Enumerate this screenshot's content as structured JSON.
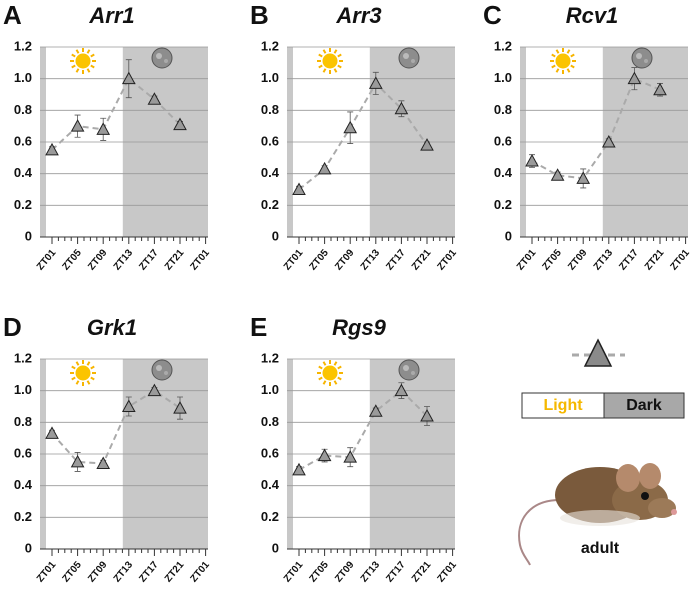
{
  "chart_data": [
    {
      "type": "line",
      "label": "A",
      "title": "Arr1",
      "categories": [
        "ZT01",
        "ZT05",
        "ZT09",
        "ZT13",
        "ZT17",
        "ZT21",
        "ZT01"
      ],
      "values": [
        0.55,
        0.7,
        0.68,
        1.0,
        0.87,
        0.71,
        null
      ],
      "errors": [
        0.02,
        0.07,
        0.07,
        0.12,
        0.02,
        0.02,
        null
      ],
      "ylim": [
        0,
        1.2
      ],
      "yticks": [
        0,
        0.2,
        0.4,
        0.6,
        0.8,
        {
          "value": 1,
          "label": "1.0"
        },
        1.2
      ],
      "grid": true,
      "color": "#9a9a9a"
    },
    {
      "type": "line",
      "label": "B",
      "title": "Arr3",
      "categories": [
        "ZT01",
        "ZT05",
        "ZT09",
        "ZT13",
        "ZT17",
        "ZT21",
        "ZT01"
      ],
      "values": [
        0.3,
        0.43,
        0.69,
        0.97,
        0.81,
        0.58,
        null
      ],
      "errors": [
        0.02,
        0.02,
        0.1,
        0.07,
        0.05,
        0.02,
        null
      ],
      "ylim": [
        0,
        1.2
      ],
      "yticks": [
        0,
        0.2,
        0.4,
        0.6,
        0.8,
        {
          "value": 1,
          "label": "1.0"
        },
        1.2
      ],
      "grid": true,
      "color": "#9a9a9a"
    },
    {
      "type": "line",
      "label": "C",
      "title": "Rcv1",
      "categories": [
        "ZT01",
        "ZT05",
        "ZT09",
        "ZT13",
        "ZT17",
        "ZT21",
        "ZT01"
      ],
      "values": [
        0.48,
        0.39,
        0.37,
        0.6,
        1.0,
        0.93,
        null
      ],
      "errors": [
        0.04,
        0.02,
        0.06,
        0.02,
        0.07,
        0.04,
        null
      ],
      "ylim": [
        0,
        1.2
      ],
      "yticks": [
        0,
        0.2,
        0.4,
        0.6,
        0.8,
        {
          "value": 1,
          "label": "1.0"
        },
        1.2
      ],
      "grid": true,
      "color": "#9a9a9a"
    },
    {
      "type": "line",
      "label": "D",
      "title": "Grk1",
      "categories": [
        "ZT01",
        "ZT05",
        "ZT09",
        "ZT13",
        "ZT17",
        "ZT21",
        "ZT01"
      ],
      "values": [
        0.73,
        0.55,
        0.54,
        0.9,
        1.0,
        0.89,
        null
      ],
      "errors": [
        0.02,
        0.06,
        0.02,
        0.06,
        0.02,
        0.07,
        null
      ],
      "ylim": [
        0,
        1.2
      ],
      "yticks": [
        0,
        0.2,
        0.4,
        0.6,
        0.8,
        {
          "value": 1,
          "label": "1.0"
        },
        1.2
      ],
      "grid": true,
      "color": "#9a9a9a"
    },
    {
      "type": "line",
      "label": "E",
      "title": "Rgs9",
      "categories": [
        "ZT01",
        "ZT05",
        "ZT09",
        "ZT13",
        "ZT17",
        "ZT21",
        "ZT01"
      ],
      "values": [
        0.5,
        0.59,
        0.58,
        0.87,
        1.0,
        0.84,
        null
      ],
      "errors": [
        0.02,
        0.04,
        0.06,
        0.02,
        0.05,
        0.06,
        null
      ],
      "ylim": [
        0,
        1.2
      ],
      "yticks": [
        0,
        0.2,
        0.4,
        0.6,
        0.8,
        {
          "value": 1,
          "label": "1.0"
        },
        1.2
      ],
      "grid": true,
      "color": "#9a9a9a"
    }
  ],
  "legend": {
    "light": "Light",
    "dark": "Dark",
    "subject": "adult"
  }
}
